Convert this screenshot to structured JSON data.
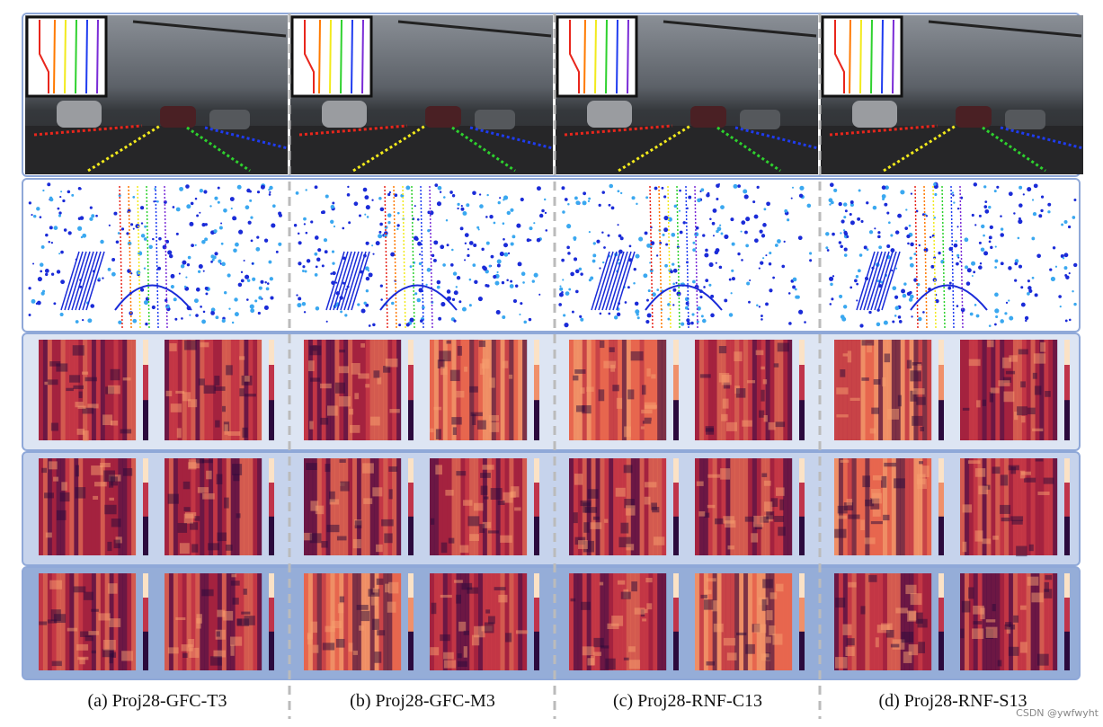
{
  "captions": [
    "(a) Proj28-GFC-T3",
    "(b) Proj28-GFC-M3",
    "(c) Proj28-RNF-C13",
    "(d) Proj28-RNF-S13"
  ],
  "watermark": "CSDN @ywfwyht"
}
